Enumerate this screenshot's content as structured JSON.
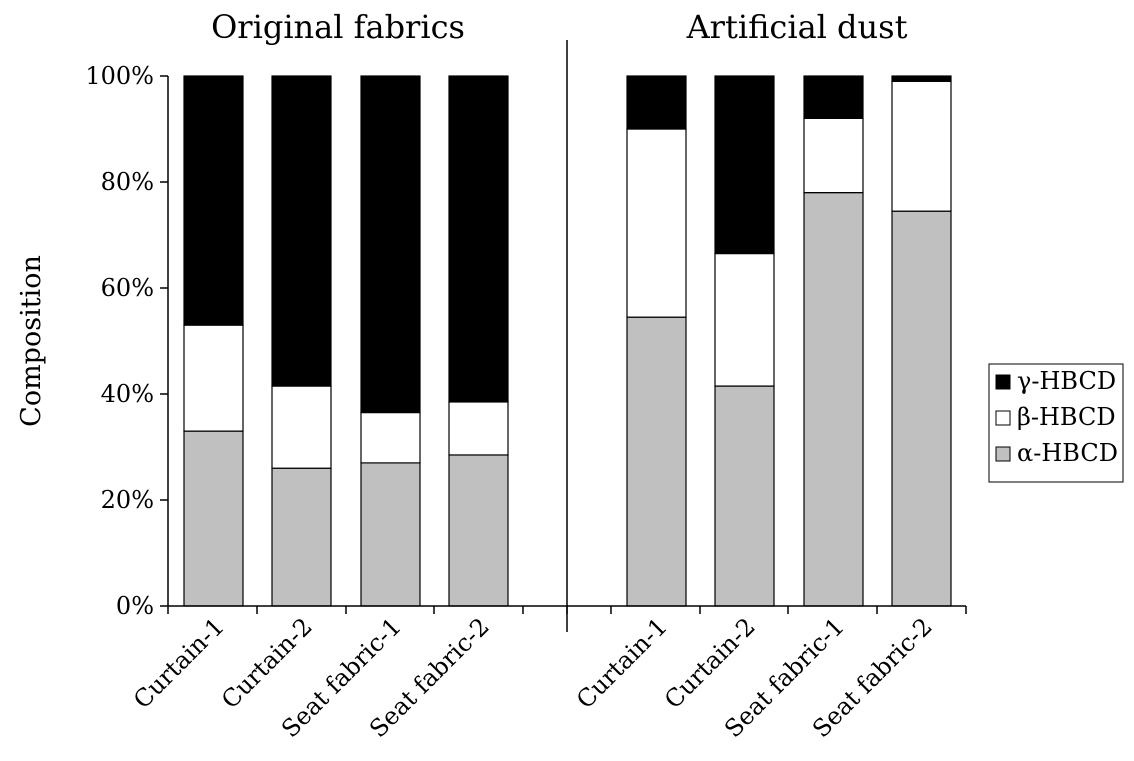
{
  "chart_data": {
    "type": "bar",
    "stacked": true,
    "ylabel": "Composition",
    "ylim": [
      0,
      100
    ],
    "yticks": [
      "0%",
      "20%",
      "40%",
      "60%",
      "80%",
      "100%"
    ],
    "groups": [
      {
        "title": "Original fabrics",
        "categories": [
          "Curtain-1",
          "Curtain-2",
          "Seat fabric-1",
          "Seat fabric-2"
        ],
        "series": [
          {
            "name": "α-HBCD",
            "values": [
              33,
              26,
              27,
              28.5
            ]
          },
          {
            "name": "β-HBCD",
            "values": [
              20,
              15.5,
              9.5,
              10
            ]
          },
          {
            "name": "γ-HBCD",
            "values": [
              47,
              58.5,
              63.5,
              61.5
            ]
          }
        ]
      },
      {
        "title": "Artificial dust",
        "categories": [
          "Curtain-1",
          "Curtain-2",
          "Seat fabric-1",
          "Seat fabric-2"
        ],
        "series": [
          {
            "name": "α-HBCD",
            "values": [
              54.5,
              41.5,
              78,
              74.5
            ]
          },
          {
            "name": "β-HBCD",
            "values": [
              35.5,
              25,
              14,
              24.5
            ]
          },
          {
            "name": "γ-HBCD",
            "values": [
              10,
              33.5,
              8,
              1
            ]
          }
        ]
      }
    ],
    "legend": {
      "placement": "right",
      "entries": [
        {
          "name": "γ-HBCD",
          "color": "#000000"
        },
        {
          "name": "β-HBCD",
          "color": "#ffffff"
        },
        {
          "name": "α-HBCD",
          "color": "#c0c0c0"
        }
      ]
    },
    "colors": {
      "α-HBCD": "#c0c0c0",
      "β-HBCD": "#ffffff",
      "γ-HBCD": "#000000"
    },
    "grid": false
  }
}
